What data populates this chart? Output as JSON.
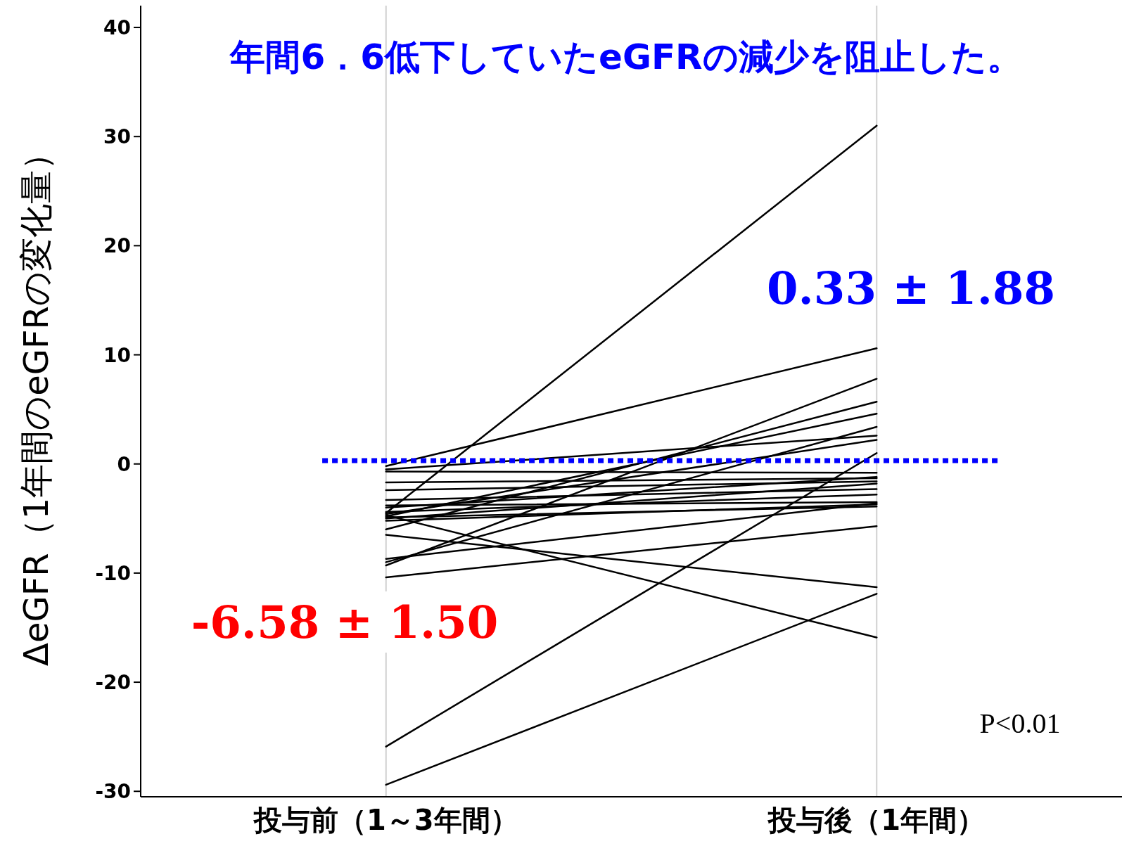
{
  "chart_data": {
    "type": "line",
    "categories": [
      "投与前（1～3年間）",
      "投与後（1年間）"
    ],
    "ylabel": "ΔeGFR（1年間のeGFRの変化量）",
    "ylim": [
      -30.5,
      42
    ],
    "yticks": [
      -30,
      -20,
      -10,
      0,
      10,
      20,
      30,
      40
    ],
    "grid": "x",
    "marker": "none",
    "line_style": "solid",
    "series": [
      {
        "color": "#000000",
        "values": [
          -4.5,
          31.0
        ]
      },
      {
        "color": "#000000",
        "values": [
          -0.2,
          10.6
        ]
      },
      {
        "color": "#000000",
        "values": [
          -9.3,
          7.8
        ]
      },
      {
        "color": "#000000",
        "values": [
          -6.0,
          5.7
        ]
      },
      {
        "color": "#000000",
        "values": [
          -4.8,
          4.6
        ]
      },
      {
        "color": "#000000",
        "values": [
          -9.0,
          3.4
        ]
      },
      {
        "color": "#000000",
        "values": [
          -0.5,
          2.6
        ]
      },
      {
        "color": "#000000",
        "values": [
          -4.6,
          2.2
        ]
      },
      {
        "color": "#000000",
        "values": [
          -25.9,
          1.0
        ]
      },
      {
        "color": "#000000",
        "values": [
          -0.7,
          -0.8
        ]
      },
      {
        "color": "#000000",
        "values": [
          -1.7,
          -1.3
        ]
      },
      {
        "color": "#000000",
        "values": [
          -2.4,
          -1.6
        ]
      },
      {
        "color": "#000000",
        "values": [
          -5.0,
          -1.8
        ]
      },
      {
        "color": "#000000",
        "values": [
          -3.3,
          -2.3
        ]
      },
      {
        "color": "#000000",
        "values": [
          -4.4,
          -2.8
        ]
      },
      {
        "color": "#000000",
        "values": [
          -3.8,
          -3.5
        ]
      },
      {
        "color": "#000000",
        "values": [
          -5.2,
          -3.7
        ]
      },
      {
        "color": "#000000",
        "values": [
          -4.9,
          -3.9
        ]
      },
      {
        "color": "#000000",
        "values": [
          -10.4,
          -5.7
        ]
      },
      {
        "color": "#000000",
        "values": [
          -6.5,
          -11.3
        ]
      },
      {
        "color": "#000000",
        "values": [
          -4.7,
          -15.9
        ]
      },
      {
        "color": "#000000",
        "values": [
          -29.4,
          -11.9
        ]
      },
      {
        "color": "#000000",
        "values": [
          -8.7,
          -3.6
        ]
      },
      {
        "color": "#000000",
        "values": [
          -4.0,
          -1.2
        ]
      }
    ],
    "ref_lines": [
      {
        "axis": "y",
        "value": 0.3,
        "color": "#0000ff",
        "line_style": "dotted"
      }
    ],
    "annotations": [
      "年間6．6低下していたeGFRの減少を阻止した。",
      "0.33 ± 1.88",
      "-6.58 ± 1.50",
      "P<0.01"
    ]
  }
}
